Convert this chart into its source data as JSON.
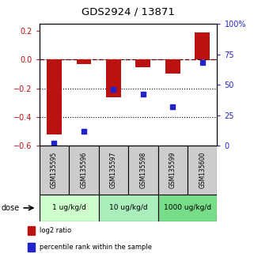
{
  "title": "GDS2924 / 13871",
  "samples": [
    "GSM135595",
    "GSM135596",
    "GSM135597",
    "GSM135598",
    "GSM135599",
    "GSM135600"
  ],
  "log2_ratio": [
    -0.52,
    -0.03,
    -0.265,
    -0.055,
    -0.095,
    0.19
  ],
  "percentile_rank": [
    2,
    12,
    46,
    42,
    32,
    68
  ],
  "bar_color": "#bb1111",
  "dot_color": "#2222cc",
  "dose_groups": [
    {
      "label": "1 ug/kg/d",
      "indices": [
        0,
        1
      ],
      "color": "#ccffcc"
    },
    {
      "label": "10 ug/kg/d",
      "indices": [
        2,
        3
      ],
      "color": "#aaeebb"
    },
    {
      "label": "1000 ug/kg/d",
      "indices": [
        4,
        5
      ],
      "color": "#77dd88"
    }
  ],
  "ylim_left": [
    -0.6,
    0.25
  ],
  "ylim_right": [
    0,
    100
  ],
  "yticks_left": [
    0.2,
    0.0,
    -0.2,
    -0.4,
    -0.6
  ],
  "yticks_right": [
    100,
    75,
    50,
    25,
    0
  ],
  "hline_y": 0.0,
  "dotted_lines": [
    -0.2,
    -0.4
  ],
  "legend_red": "log2 ratio",
  "legend_blue": "percentile rank within the sample",
  "dose_label": "dose",
  "background_color": "#ffffff",
  "sample_box_color": "#cccccc",
  "bar_width": 0.5
}
